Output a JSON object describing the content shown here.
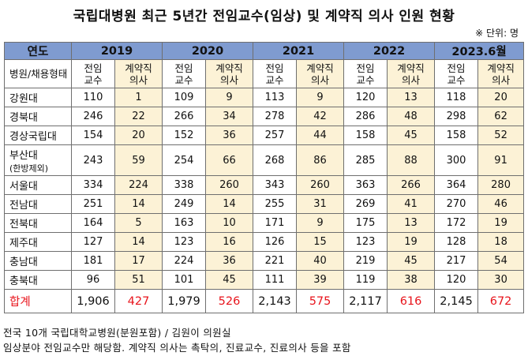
{
  "title": "국립대병원 최근 5년간 전임교수(임상) 및 계약직 의사 인원 현황",
  "unit": "※ 단위: 명",
  "header": {
    "corner": "연도",
    "years": [
      "2019",
      "2020",
      "2021",
      "2022",
      "2023.6월"
    ],
    "row_label": "병원/채용형태",
    "sub_full": "전임\n교수",
    "sub_contract": "계약직\n의사"
  },
  "rows": [
    {
      "name": "강원대",
      "v": [
        "110",
        "1",
        "109",
        "9",
        "113",
        "9",
        "120",
        "13",
        "118",
        "20"
      ]
    },
    {
      "name": "경북대",
      "v": [
        "246",
        "22",
        "266",
        "34",
        "278",
        "42",
        "286",
        "48",
        "298",
        "62"
      ]
    },
    {
      "name": "경상국립대",
      "v": [
        "154",
        "20",
        "152",
        "36",
        "257",
        "44",
        "158",
        "45",
        "158",
        "52"
      ]
    },
    {
      "name": "부산대",
      "note": "(한방제외)",
      "v": [
        "243",
        "59",
        "254",
        "66",
        "268",
        "86",
        "285",
        "88",
        "300",
        "91"
      ]
    },
    {
      "name": "서울대",
      "v": [
        "334",
        "224",
        "338",
        "260",
        "343",
        "260",
        "363",
        "266",
        "364",
        "280"
      ]
    },
    {
      "name": "전남대",
      "v": [
        "251",
        "14",
        "249",
        "14",
        "255",
        "31",
        "269",
        "41",
        "270",
        "46"
      ]
    },
    {
      "name": "전북대",
      "v": [
        "164",
        "5",
        "163",
        "10",
        "171",
        "9",
        "175",
        "13",
        "172",
        "19"
      ]
    },
    {
      "name": "제주대",
      "v": [
        "127",
        "14",
        "123",
        "16",
        "126",
        "15",
        "123",
        "19",
        "128",
        "18"
      ]
    },
    {
      "name": "충남대",
      "v": [
        "181",
        "17",
        "224",
        "36",
        "221",
        "40",
        "219",
        "45",
        "217",
        "54"
      ]
    },
    {
      "name": "충북대",
      "v": [
        "96",
        "51",
        "101",
        "45",
        "111",
        "39",
        "119",
        "38",
        "120",
        "30"
      ]
    }
  ],
  "total": {
    "name": "합계",
    "v": [
      "1,906",
      "427",
      "1,979",
      "526",
      "2,143",
      "575",
      "2,117",
      "616",
      "2,145",
      "672"
    ]
  },
  "colors": {
    "header_bg": "#7f9bd0",
    "contract_bg": "#fcf2d6",
    "accent_red": "#e8141c"
  },
  "footnotes": [
    "전국 10개 국립대학교병원(분원포함) / 김원이 의원실",
    "임상분야 전임교수만 해당함. 계약직 의사는 촉탁의, 진료교수, 진료의사 등을 포함"
  ]
}
